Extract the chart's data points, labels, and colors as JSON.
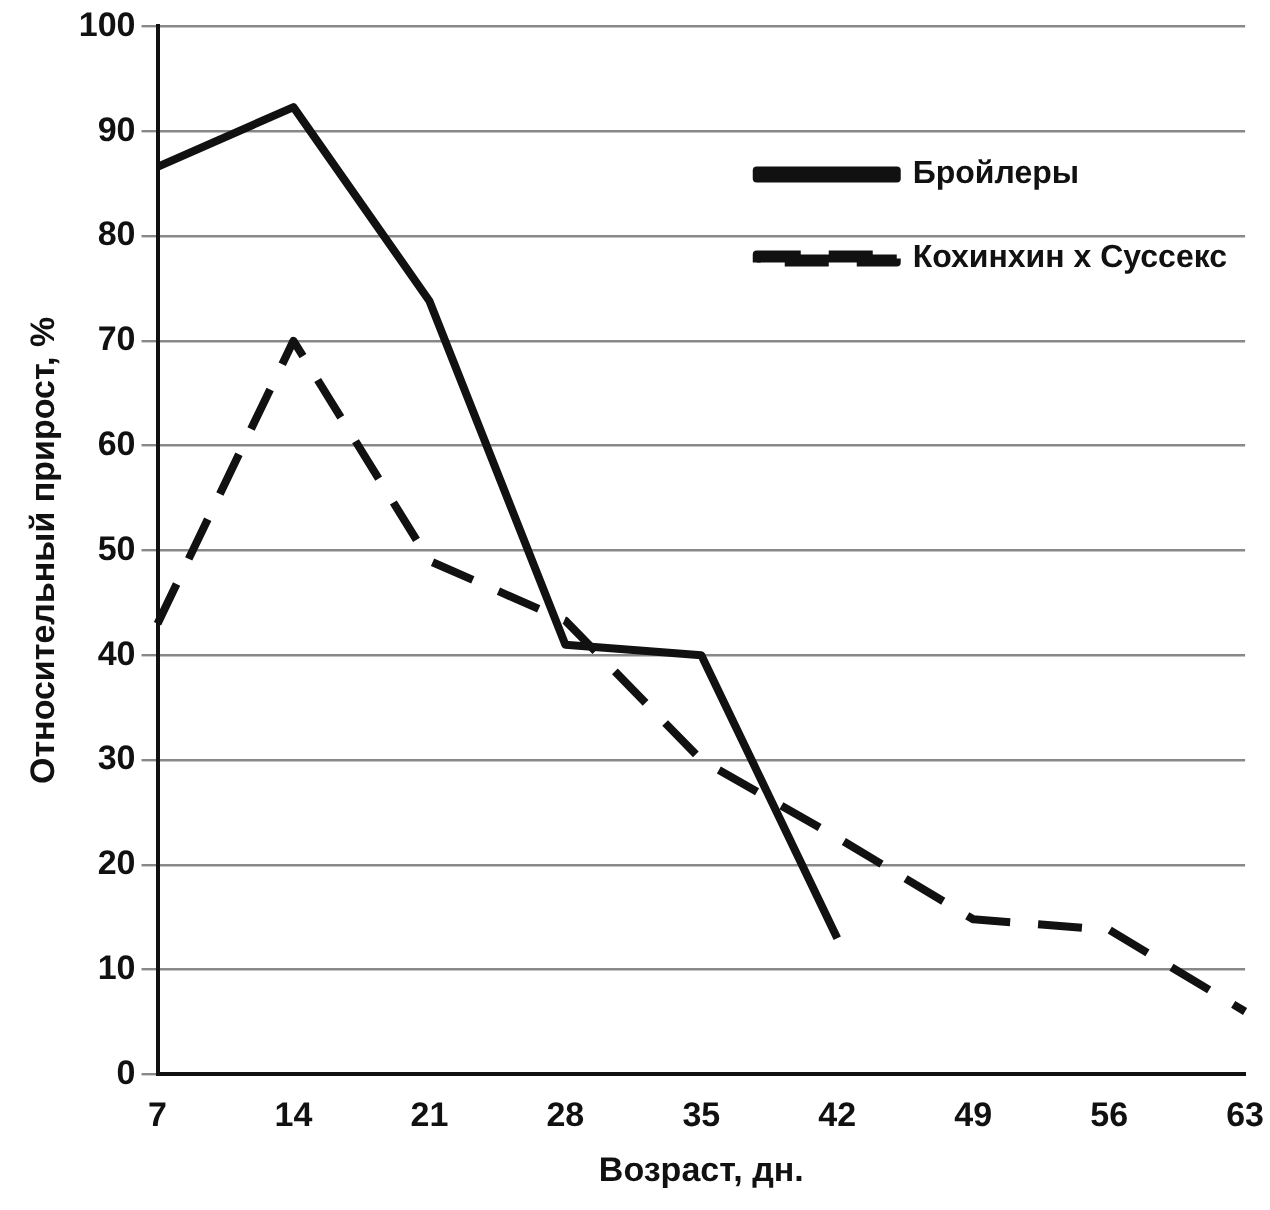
{
  "chart_data": {
    "type": "line",
    "xlabel": "Возраст, дн.",
    "ylabel": "Относительный прирост, %",
    "categories": [
      "7",
      "14",
      "21",
      "28",
      "35",
      "42",
      "49",
      "56",
      "63"
    ],
    "series": [
      {
        "name": "Бройлеры",
        "color": "#111111",
        "line_style": "solid",
        "values": [
          86.6,
          92.3,
          73.8,
          41,
          40,
          13,
          null,
          null,
          null
        ]
      },
      {
        "name": "Кохинхин х Суссекс",
        "color": "#111111",
        "line_style": "dashed",
        "values": [
          43,
          70,
          49,
          43.3,
          30,
          22.6,
          14.8,
          13.8,
          6
        ]
      }
    ],
    "ylim": [
      0,
      100
    ],
    "yticks": [
      0,
      10,
      20,
      30,
      40,
      50,
      60,
      70,
      80,
      90,
      100
    ],
    "grid": "y",
    "legend": "top right",
    "marker": "none"
  }
}
